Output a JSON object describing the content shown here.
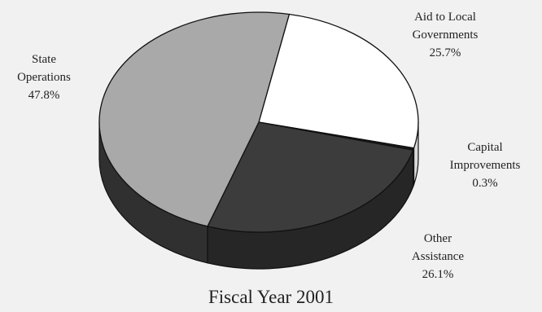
{
  "chart_data": {
    "type": "pie",
    "title": "Fiscal Year 2001",
    "style": "3d",
    "slices": [
      {
        "label": "Aid to Local Governments",
        "lines": [
          "Aid to Local",
          "Governments"
        ],
        "value_label": "25.7%",
        "value": 25.7,
        "color": "#ffffff",
        "side_color": "#d9d9d9"
      },
      {
        "label": "Capital Improvements",
        "lines": [
          "Capital",
          "Improvements"
        ],
        "value_label": "0.3%",
        "value": 0.3,
        "color": "#1a1a1a",
        "side_color": "#111111"
      },
      {
        "label": "Other Assistance",
        "lines": [
          "Other",
          "Assistance"
        ],
        "value_label": "26.1%",
        "value": 26.1,
        "color": "#3c3c3c",
        "side_color": "#262626"
      },
      {
        "label": "State Operations",
        "lines": [
          "State",
          "Operations"
        ],
        "value_label": "47.8%",
        "value": 47.8,
        "color": "#a9a9a9",
        "side_color": "#303030"
      }
    ]
  }
}
